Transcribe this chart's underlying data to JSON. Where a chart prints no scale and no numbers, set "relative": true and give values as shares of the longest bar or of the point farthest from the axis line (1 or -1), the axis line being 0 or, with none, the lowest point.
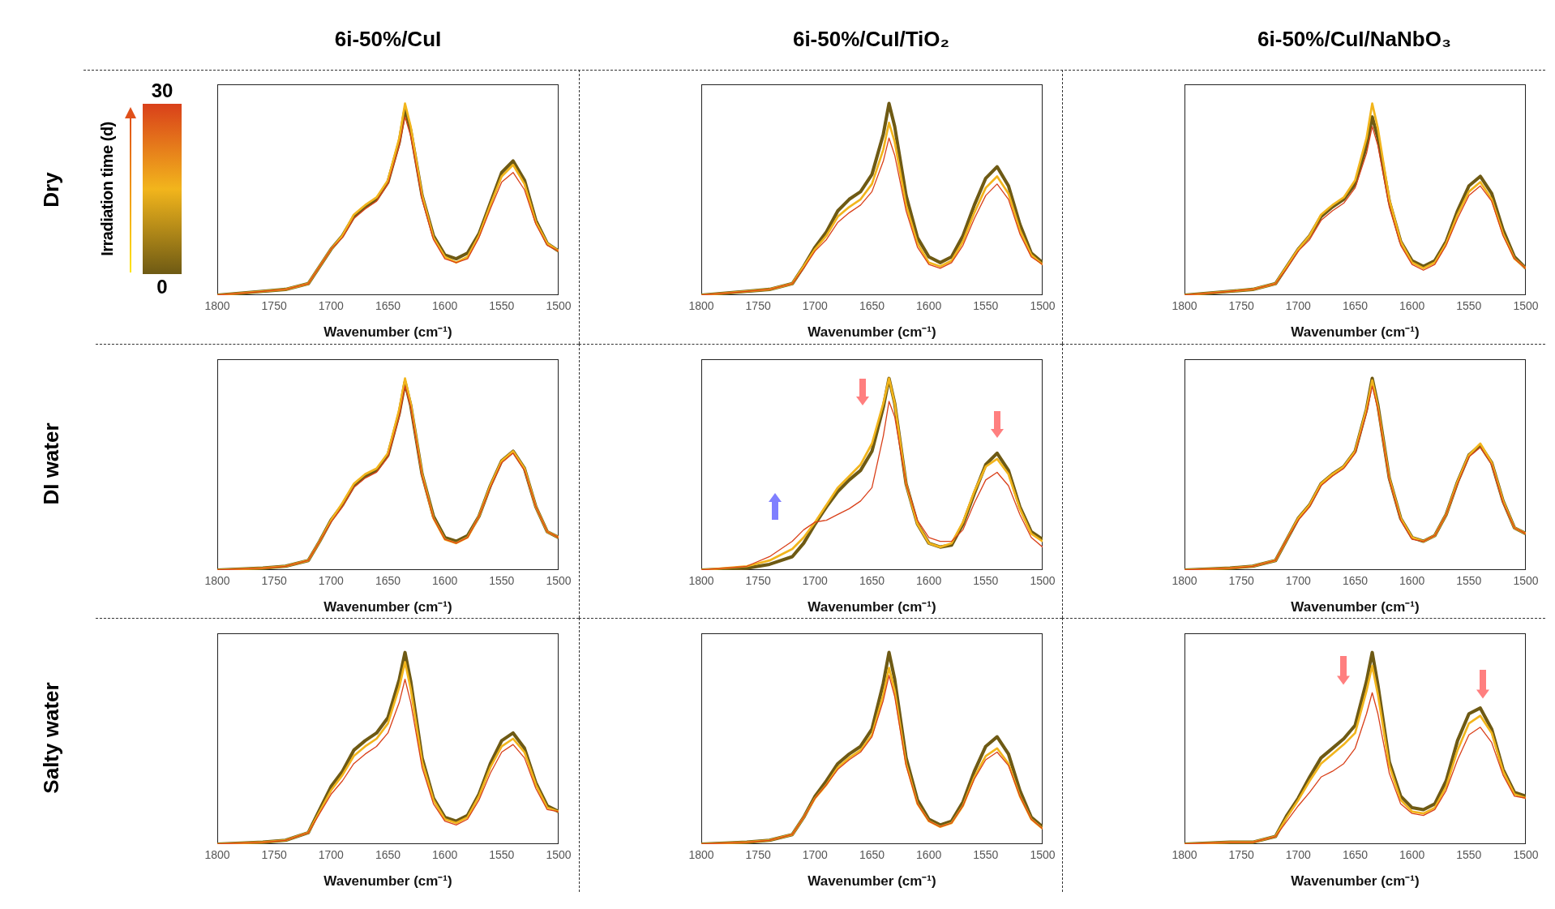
{
  "chart_data": [
    {
      "type": "line",
      "title": "6i-50%/CuI",
      "ylabel": "Dry",
      "xlabel": "Wavenumber (cm⁻¹)",
      "relative": true,
      "marker": "none",
      "line_style": "solid",
      "clabel": "Irradiation time (d)",
      "clim": [
        0,
        30
      ],
      "cticks": [
        0,
        30
      ],
      "xlim": [
        1800,
        1500
      ],
      "xticks": [
        1800,
        1750,
        1700,
        1650,
        1600,
        1550,
        1500
      ],
      "x": [
        1800,
        1760,
        1740,
        1720,
        1710,
        1700,
        1690,
        1680,
        1670,
        1660,
        1650,
        1640,
        1635,
        1630,
        1620,
        1610,
        1600,
        1590,
        1580,
        1570,
        1560,
        1550,
        1540,
        1530,
        1520,
        1510,
        1500
      ],
      "series": [
        {
          "color": "#6e5a14",
          "values": [
            0,
            0.02,
            0.03,
            0.06,
            0.15,
            0.24,
            0.31,
            0.41,
            0.46,
            0.5,
            0.59,
            0.8,
            0.97,
            0.86,
            0.52,
            0.31,
            0.21,
            0.19,
            0.22,
            0.32,
            0.48,
            0.64,
            0.7,
            0.6,
            0.39,
            0.27,
            0.23
          ]
        },
        {
          "color": "#f2b51c",
          "values": [
            0,
            0.02,
            0.03,
            0.06,
            0.15,
            0.24,
            0.31,
            0.42,
            0.47,
            0.51,
            0.6,
            0.82,
            1.0,
            0.88,
            0.52,
            0.3,
            0.2,
            0.17,
            0.2,
            0.31,
            0.47,
            0.62,
            0.68,
            0.58,
            0.38,
            0.27,
            0.23
          ]
        },
        {
          "color": "#d9401a",
          "values": [
            0,
            0.02,
            0.03,
            0.06,
            0.15,
            0.24,
            0.3,
            0.4,
            0.45,
            0.49,
            0.58,
            0.78,
            0.93,
            0.83,
            0.5,
            0.29,
            0.19,
            0.17,
            0.19,
            0.3,
            0.45,
            0.59,
            0.64,
            0.55,
            0.37,
            0.26,
            0.23
          ]
        }
      ]
    },
    {
      "type": "line",
      "title": "6i-50%/CuI/TiO₂",
      "xlabel": "Wavenumber (cm⁻¹)",
      "relative": true,
      "marker": "none",
      "line_style": "solid",
      "xlim": [
        1800,
        1500
      ],
      "xticks": [
        1800,
        1750,
        1700,
        1650,
        1600,
        1550,
        1500
      ],
      "x": [
        1800,
        1760,
        1740,
        1720,
        1710,
        1700,
        1690,
        1680,
        1670,
        1660,
        1650,
        1640,
        1635,
        1630,
        1620,
        1610,
        1600,
        1590,
        1580,
        1570,
        1560,
        1550,
        1540,
        1530,
        1520,
        1510,
        1500
      ],
      "series": [
        {
          "color": "#6e5a14",
          "values": [
            0,
            0.02,
            0.03,
            0.06,
            0.15,
            0.25,
            0.33,
            0.44,
            0.5,
            0.54,
            0.63,
            0.84,
            1.0,
            0.88,
            0.52,
            0.3,
            0.2,
            0.17,
            0.2,
            0.31,
            0.47,
            0.61,
            0.67,
            0.57,
            0.37,
            0.22,
            0.17
          ]
        },
        {
          "color": "#f2b51c",
          "values": [
            0,
            0.02,
            0.03,
            0.06,
            0.15,
            0.24,
            0.31,
            0.41,
            0.46,
            0.5,
            0.58,
            0.76,
            0.9,
            0.8,
            0.47,
            0.27,
            0.17,
            0.15,
            0.18,
            0.28,
            0.43,
            0.56,
            0.62,
            0.53,
            0.34,
            0.21,
            0.16
          ]
        },
        {
          "color": "#d9401a",
          "values": [
            0,
            0.02,
            0.03,
            0.06,
            0.14,
            0.23,
            0.29,
            0.38,
            0.43,
            0.47,
            0.54,
            0.7,
            0.82,
            0.73,
            0.44,
            0.25,
            0.16,
            0.14,
            0.17,
            0.26,
            0.4,
            0.52,
            0.58,
            0.5,
            0.32,
            0.2,
            0.16
          ]
        }
      ]
    },
    {
      "type": "line",
      "title": "6i-50%/CuI/NaNbO₃",
      "xlabel": "Wavenumber (cm⁻¹)",
      "relative": true,
      "marker": "none",
      "line_style": "solid",
      "xlim": [
        1800,
        1500
      ],
      "xticks": [
        1800,
        1750,
        1700,
        1650,
        1600,
        1550,
        1500
      ],
      "x": [
        1800,
        1760,
        1740,
        1720,
        1710,
        1700,
        1690,
        1680,
        1670,
        1660,
        1650,
        1640,
        1635,
        1630,
        1620,
        1610,
        1600,
        1590,
        1580,
        1570,
        1560,
        1550,
        1540,
        1530,
        1520,
        1510,
        1500
      ],
      "series": [
        {
          "color": "#6e5a14",
          "values": [
            0,
            0.02,
            0.03,
            0.06,
            0.15,
            0.24,
            0.31,
            0.41,
            0.46,
            0.5,
            0.58,
            0.78,
            0.93,
            0.82,
            0.49,
            0.28,
            0.18,
            0.15,
            0.18,
            0.28,
            0.44,
            0.57,
            0.62,
            0.53,
            0.34,
            0.2,
            0.14
          ]
        },
        {
          "color": "#f2b51c",
          "values": [
            0,
            0.02,
            0.03,
            0.06,
            0.15,
            0.24,
            0.31,
            0.42,
            0.47,
            0.51,
            0.6,
            0.82,
            1.0,
            0.87,
            0.5,
            0.28,
            0.17,
            0.14,
            0.17,
            0.27,
            0.42,
            0.54,
            0.59,
            0.5,
            0.32,
            0.19,
            0.14
          ]
        },
        {
          "color": "#d9401a",
          "values": [
            0,
            0.02,
            0.03,
            0.06,
            0.14,
            0.23,
            0.29,
            0.39,
            0.44,
            0.48,
            0.56,
            0.74,
            0.88,
            0.78,
            0.46,
            0.26,
            0.16,
            0.13,
            0.16,
            0.26,
            0.4,
            0.52,
            0.57,
            0.49,
            0.31,
            0.19,
            0.14
          ]
        }
      ]
    },
    {
      "type": "line",
      "ylabel": "DI water",
      "xlabel": "Wavenumber (cm⁻¹)",
      "relative": true,
      "marker": "none",
      "line_style": "solid",
      "xlim": [
        1800,
        1500
      ],
      "xticks": [
        1800,
        1750,
        1700,
        1650,
        1600,
        1550,
        1500
      ],
      "x": [
        1800,
        1760,
        1740,
        1720,
        1710,
        1700,
        1690,
        1680,
        1670,
        1660,
        1650,
        1640,
        1635,
        1630,
        1620,
        1610,
        1600,
        1590,
        1580,
        1570,
        1560,
        1550,
        1540,
        1530,
        1520,
        1510,
        1500
      ],
      "series": [
        {
          "color": "#6e5a14",
          "values": [
            0,
            0.01,
            0.02,
            0.05,
            0.15,
            0.26,
            0.34,
            0.44,
            0.49,
            0.52,
            0.6,
            0.82,
            0.98,
            0.86,
            0.5,
            0.28,
            0.17,
            0.15,
            0.18,
            0.28,
            0.44,
            0.57,
            0.62,
            0.53,
            0.33,
            0.2,
            0.17
          ]
        },
        {
          "color": "#f2b51c",
          "values": [
            0,
            0.01,
            0.02,
            0.05,
            0.15,
            0.26,
            0.35,
            0.45,
            0.5,
            0.53,
            0.61,
            0.84,
            1.0,
            0.87,
            0.5,
            0.27,
            0.16,
            0.14,
            0.17,
            0.28,
            0.44,
            0.57,
            0.62,
            0.53,
            0.33,
            0.2,
            0.17
          ]
        },
        {
          "color": "#d9401a",
          "values": [
            0,
            0.01,
            0.02,
            0.05,
            0.15,
            0.25,
            0.33,
            0.43,
            0.48,
            0.51,
            0.59,
            0.8,
            0.96,
            0.85,
            0.49,
            0.27,
            0.16,
            0.14,
            0.17,
            0.28,
            0.43,
            0.56,
            0.61,
            0.52,
            0.33,
            0.2,
            0.17
          ]
        }
      ]
    },
    {
      "type": "line",
      "xlabel": "Wavenumber (cm⁻¹)",
      "relative": true,
      "marker": "none",
      "line_style": "solid",
      "xlim": [
        1800,
        1500
      ],
      "xticks": [
        1800,
        1750,
        1700,
        1650,
        1600,
        1550,
        1500
      ],
      "x": [
        1800,
        1760,
        1740,
        1720,
        1710,
        1700,
        1690,
        1680,
        1670,
        1660,
        1650,
        1640,
        1635,
        1630,
        1620,
        1610,
        1600,
        1590,
        1580,
        1570,
        1560,
        1550,
        1540,
        1530,
        1520,
        1510,
        1500
      ],
      "series": [
        {
          "color": "#6e5a14",
          "values": [
            0,
            0.01,
            0.03,
            0.07,
            0.14,
            0.24,
            0.33,
            0.41,
            0.47,
            0.52,
            0.62,
            0.85,
            1.0,
            0.87,
            0.45,
            0.24,
            0.14,
            0.12,
            0.13,
            0.24,
            0.4,
            0.55,
            0.61,
            0.52,
            0.33,
            0.2,
            0.16
          ]
        },
        {
          "color": "#f2b51c",
          "values": [
            0,
            0.02,
            0.05,
            0.11,
            0.17,
            0.25,
            0.34,
            0.43,
            0.49,
            0.55,
            0.66,
            0.87,
            1.0,
            0.87,
            0.45,
            0.24,
            0.14,
            0.12,
            0.14,
            0.25,
            0.41,
            0.54,
            0.58,
            0.5,
            0.32,
            0.19,
            0.15
          ]
        },
        {
          "color": "#d9401a",
          "values": [
            0,
            0.02,
            0.07,
            0.15,
            0.21,
            0.25,
            0.26,
            0.29,
            0.32,
            0.36,
            0.43,
            0.7,
            0.88,
            0.8,
            0.45,
            0.26,
            0.17,
            0.15,
            0.15,
            0.21,
            0.35,
            0.47,
            0.51,
            0.44,
            0.29,
            0.17,
            0.12
          ]
        }
      ]
    },
    {
      "type": "line",
      "xlabel": "Wavenumber (cm⁻¹)",
      "relative": true,
      "marker": "none",
      "line_style": "solid",
      "xlim": [
        1800,
        1500
      ],
      "xticks": [
        1800,
        1750,
        1700,
        1650,
        1600,
        1550,
        1500
      ],
      "x": [
        1800,
        1760,
        1740,
        1720,
        1710,
        1700,
        1690,
        1680,
        1670,
        1660,
        1650,
        1640,
        1635,
        1630,
        1620,
        1610,
        1600,
        1590,
        1580,
        1570,
        1560,
        1550,
        1540,
        1530,
        1520,
        1510,
        1500
      ],
      "series": [
        {
          "color": "#6e5a14",
          "values": [
            0,
            0.01,
            0.02,
            0.05,
            0.16,
            0.27,
            0.34,
            0.45,
            0.5,
            0.54,
            0.62,
            0.84,
            1.0,
            0.86,
            0.48,
            0.27,
            0.17,
            0.15,
            0.18,
            0.29,
            0.46,
            0.6,
            0.65,
            0.56,
            0.36,
            0.22,
            0.19
          ]
        },
        {
          "color": "#f2b51c",
          "values": [
            0,
            0.01,
            0.02,
            0.05,
            0.16,
            0.27,
            0.34,
            0.45,
            0.5,
            0.54,
            0.62,
            0.84,
            0.99,
            0.85,
            0.48,
            0.27,
            0.17,
            0.15,
            0.18,
            0.29,
            0.46,
            0.6,
            0.66,
            0.56,
            0.36,
            0.22,
            0.19
          ]
        },
        {
          "color": "#d9401a",
          "values": [
            0,
            0.01,
            0.02,
            0.05,
            0.16,
            0.26,
            0.33,
            0.44,
            0.49,
            0.53,
            0.61,
            0.82,
            0.96,
            0.84,
            0.47,
            0.26,
            0.16,
            0.15,
            0.18,
            0.29,
            0.45,
            0.59,
            0.64,
            0.55,
            0.35,
            0.22,
            0.19
          ]
        }
      ]
    },
    {
      "type": "line",
      "ylabel": "Salty water",
      "xlabel": "Wavenumber (cm⁻¹)",
      "relative": true,
      "marker": "none",
      "line_style": "solid",
      "xlim": [
        1800,
        1500
      ],
      "xticks": [
        1800,
        1750,
        1700,
        1650,
        1600,
        1550,
        1500
      ],
      "x": [
        1800,
        1760,
        1740,
        1720,
        1710,
        1700,
        1690,
        1680,
        1670,
        1660,
        1650,
        1640,
        1635,
        1630,
        1620,
        1610,
        1600,
        1590,
        1580,
        1570,
        1560,
        1550,
        1540,
        1530,
        1520,
        1510,
        1500
      ],
      "series": [
        {
          "color": "#6e5a14",
          "values": [
            0,
            0.01,
            0.02,
            0.06,
            0.18,
            0.3,
            0.38,
            0.49,
            0.54,
            0.58,
            0.66,
            0.86,
            1.0,
            0.85,
            0.45,
            0.24,
            0.14,
            0.12,
            0.15,
            0.26,
            0.42,
            0.54,
            0.58,
            0.5,
            0.32,
            0.2,
            0.17
          ]
        },
        {
          "color": "#f2b51c",
          "values": [
            0,
            0.01,
            0.02,
            0.06,
            0.17,
            0.28,
            0.36,
            0.46,
            0.51,
            0.55,
            0.63,
            0.82,
            0.95,
            0.81,
            0.43,
            0.23,
            0.13,
            0.11,
            0.14,
            0.25,
            0.4,
            0.51,
            0.55,
            0.48,
            0.31,
            0.19,
            0.17
          ]
        },
        {
          "color": "#d9401a",
          "values": [
            0,
            0.01,
            0.02,
            0.06,
            0.16,
            0.26,
            0.33,
            0.42,
            0.47,
            0.51,
            0.58,
            0.74,
            0.86,
            0.74,
            0.4,
            0.21,
            0.12,
            0.1,
            0.13,
            0.23,
            0.37,
            0.48,
            0.52,
            0.45,
            0.29,
            0.18,
            0.17
          ]
        }
      ]
    },
    {
      "type": "line",
      "xlabel": "Wavenumber (cm⁻¹)",
      "relative": true,
      "marker": "none",
      "line_style": "solid",
      "xlim": [
        1800,
        1500
      ],
      "xticks": [
        1800,
        1750,
        1700,
        1650,
        1600,
        1550,
        1500
      ],
      "x": [
        1800,
        1760,
        1740,
        1720,
        1710,
        1700,
        1690,
        1680,
        1670,
        1660,
        1650,
        1640,
        1635,
        1630,
        1620,
        1610,
        1600,
        1590,
        1580,
        1570,
        1560,
        1550,
        1540,
        1530,
        1520,
        1510,
        1500
      ],
      "series": [
        {
          "color": "#6e5a14",
          "values": [
            0,
            0.01,
            0.02,
            0.05,
            0.14,
            0.25,
            0.33,
            0.42,
            0.47,
            0.51,
            0.6,
            0.84,
            1.0,
            0.86,
            0.45,
            0.23,
            0.13,
            0.1,
            0.12,
            0.22,
            0.38,
            0.51,
            0.56,
            0.47,
            0.28,
            0.14,
            0.09
          ]
        },
        {
          "color": "#f2b51c",
          "values": [
            0,
            0.01,
            0.02,
            0.05,
            0.14,
            0.24,
            0.31,
            0.4,
            0.45,
            0.49,
            0.57,
            0.78,
            0.92,
            0.8,
            0.42,
            0.21,
            0.12,
            0.09,
            0.11,
            0.2,
            0.35,
            0.46,
            0.5,
            0.42,
            0.25,
            0.13,
            0.08
          ]
        },
        {
          "color": "#d9401a",
          "values": [
            0,
            0.01,
            0.02,
            0.05,
            0.14,
            0.24,
            0.31,
            0.39,
            0.44,
            0.48,
            0.56,
            0.75,
            0.88,
            0.77,
            0.41,
            0.21,
            0.12,
            0.09,
            0.11,
            0.2,
            0.34,
            0.44,
            0.48,
            0.41,
            0.25,
            0.13,
            0.08
          ]
        }
      ]
    },
    {
      "type": "line",
      "xlabel": "Wavenumber (cm⁻¹)",
      "relative": true,
      "marker": "none",
      "line_style": "solid",
      "xlim": [
        1800,
        1500
      ],
      "xticks": [
        1800,
        1750,
        1700,
        1650,
        1600,
        1550,
        1500
      ],
      "x": [
        1800,
        1760,
        1740,
        1720,
        1710,
        1700,
        1690,
        1680,
        1670,
        1660,
        1650,
        1640,
        1635,
        1630,
        1620,
        1610,
        1600,
        1590,
        1580,
        1570,
        1560,
        1550,
        1540,
        1530,
        1520,
        1510,
        1500
      ],
      "series": [
        {
          "color": "#6e5a14",
          "values": [
            0,
            0.01,
            0.01,
            0.04,
            0.15,
            0.24,
            0.35,
            0.45,
            0.5,
            0.55,
            0.62,
            0.85,
            1.0,
            0.83,
            0.43,
            0.25,
            0.19,
            0.18,
            0.21,
            0.33,
            0.54,
            0.68,
            0.71,
            0.6,
            0.39,
            0.27,
            0.25
          ]
        },
        {
          "color": "#f2b51c",
          "values": [
            0,
            0.01,
            0.01,
            0.04,
            0.14,
            0.23,
            0.33,
            0.42,
            0.47,
            0.52,
            0.58,
            0.8,
            0.93,
            0.78,
            0.41,
            0.23,
            0.17,
            0.16,
            0.19,
            0.3,
            0.49,
            0.63,
            0.67,
            0.58,
            0.38,
            0.26,
            0.24
          ]
        },
        {
          "color": "#d9401a",
          "values": [
            0,
            0.01,
            0.01,
            0.04,
            0.12,
            0.2,
            0.27,
            0.35,
            0.38,
            0.42,
            0.5,
            0.68,
            0.79,
            0.68,
            0.37,
            0.21,
            0.16,
            0.15,
            0.18,
            0.28,
            0.44,
            0.57,
            0.61,
            0.53,
            0.36,
            0.25,
            0.24
          ]
        }
      ]
    }
  ]
}
